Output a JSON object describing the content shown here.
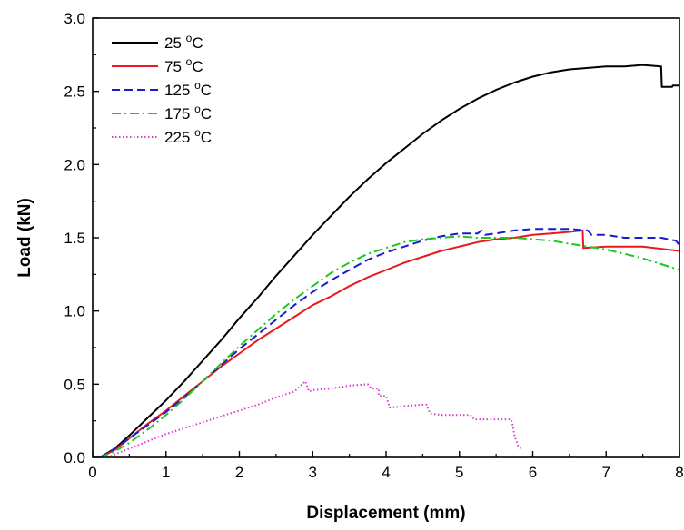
{
  "chart_data": {
    "type": "line",
    "title": "",
    "xlabel": "Displacement (mm)",
    "ylabel": "Load (kN)",
    "xlim": [
      0,
      8
    ],
    "ylim": [
      0.0,
      3.0
    ],
    "x_ticks": [
      0,
      1,
      2,
      3,
      4,
      5,
      6,
      7,
      8
    ],
    "x_tick_labels": [
      "0",
      "1",
      "2",
      "3",
      "4",
      "5",
      "6",
      "7",
      "8"
    ],
    "y_ticks": [
      0.0,
      0.5,
      1.0,
      1.5,
      2.0,
      2.5,
      3.0
    ],
    "y_tick_labels": [
      "0.0",
      "0.5",
      "1.0",
      "1.5",
      "2.0",
      "2.5",
      "3.0"
    ],
    "grid": false,
    "legend_position": "top-left",
    "series": [
      {
        "name": "25 °C",
        "label_value": "25 ",
        "label_sup": "o",
        "label_unit": "C",
        "color": "#000000",
        "dash": "solid",
        "points": [
          [
            0.1,
            0.0
          ],
          [
            0.3,
            0.06
          ],
          [
            0.5,
            0.15
          ],
          [
            0.75,
            0.27
          ],
          [
            1.0,
            0.39
          ],
          [
            1.25,
            0.52
          ],
          [
            1.5,
            0.66
          ],
          [
            1.75,
            0.8
          ],
          [
            2.0,
            0.95
          ],
          [
            2.25,
            1.09
          ],
          [
            2.5,
            1.24
          ],
          [
            2.75,
            1.38
          ],
          [
            3.0,
            1.52
          ],
          [
            3.25,
            1.65
          ],
          [
            3.5,
            1.78
          ],
          [
            3.75,
            1.9
          ],
          [
            4.0,
            2.01
          ],
          [
            4.25,
            2.11
          ],
          [
            4.5,
            2.21
          ],
          [
            4.75,
            2.3
          ],
          [
            5.0,
            2.38
          ],
          [
            5.25,
            2.45
          ],
          [
            5.5,
            2.51
          ],
          [
            5.75,
            2.56
          ],
          [
            6.0,
            2.6
          ],
          [
            6.25,
            2.63
          ],
          [
            6.5,
            2.65
          ],
          [
            6.75,
            2.66
          ],
          [
            7.0,
            2.67
          ],
          [
            7.25,
            2.67
          ],
          [
            7.5,
            2.68
          ],
          [
            7.75,
            2.67
          ],
          [
            7.76,
            2.53
          ],
          [
            7.9,
            2.53
          ],
          [
            7.91,
            2.54
          ],
          [
            8.0,
            2.54
          ]
        ]
      },
      {
        "name": "75 °C",
        "label_value": "75 ",
        "label_sup": "o",
        "label_unit": "C",
        "color": "#e8191d",
        "dash": "solid",
        "points": [
          [
            0.1,
            0.0
          ],
          [
            0.3,
            0.05
          ],
          [
            0.5,
            0.13
          ],
          [
            0.75,
            0.23
          ],
          [
            1.0,
            0.32
          ],
          [
            1.25,
            0.42
          ],
          [
            1.5,
            0.52
          ],
          [
            1.75,
            0.62
          ],
          [
            2.0,
            0.71
          ],
          [
            2.25,
            0.8
          ],
          [
            2.5,
            0.88
          ],
          [
            2.75,
            0.96
          ],
          [
            3.0,
            1.04
          ],
          [
            3.25,
            1.1
          ],
          [
            3.5,
            1.17
          ],
          [
            3.75,
            1.23
          ],
          [
            4.0,
            1.28
          ],
          [
            4.25,
            1.33
          ],
          [
            4.5,
            1.37
          ],
          [
            4.75,
            1.41
          ],
          [
            5.0,
            1.44
          ],
          [
            5.25,
            1.47
          ],
          [
            5.5,
            1.49
          ],
          [
            5.75,
            1.5
          ],
          [
            6.0,
            1.52
          ],
          [
            6.25,
            1.53
          ],
          [
            6.5,
            1.54
          ],
          [
            6.68,
            1.55
          ],
          [
            6.69,
            1.43
          ],
          [
            7.0,
            1.44
          ],
          [
            7.5,
            1.44
          ],
          [
            8.0,
            1.41
          ]
        ]
      },
      {
        "name": "125 °C",
        "label_value": "125 ",
        "label_sup": "o",
        "label_unit": "C",
        "color": "#1a1ad0",
        "dash": "dashed",
        "points": [
          [
            0.1,
            0.0
          ],
          [
            0.3,
            0.06
          ],
          [
            0.5,
            0.13
          ],
          [
            0.75,
            0.22
          ],
          [
            1.0,
            0.31
          ],
          [
            1.25,
            0.41
          ],
          [
            1.5,
            0.52
          ],
          [
            1.75,
            0.63
          ],
          [
            2.0,
            0.74
          ],
          [
            2.25,
            0.84
          ],
          [
            2.5,
            0.94
          ],
          [
            2.75,
            1.04
          ],
          [
            3.0,
            1.13
          ],
          [
            3.25,
            1.21
          ],
          [
            3.5,
            1.28
          ],
          [
            3.75,
            1.35
          ],
          [
            4.0,
            1.4
          ],
          [
            4.25,
            1.44
          ],
          [
            4.5,
            1.48
          ],
          [
            4.75,
            1.51
          ],
          [
            5.0,
            1.53
          ],
          [
            5.25,
            1.53
          ],
          [
            5.3,
            1.55
          ],
          [
            5.35,
            1.52
          ],
          [
            5.5,
            1.53
          ],
          [
            5.75,
            1.55
          ],
          [
            6.0,
            1.56
          ],
          [
            6.25,
            1.56
          ],
          [
            6.5,
            1.56
          ],
          [
            6.75,
            1.55
          ],
          [
            6.8,
            1.52
          ],
          [
            7.0,
            1.52
          ],
          [
            7.25,
            1.5
          ],
          [
            7.5,
            1.5
          ],
          [
            7.75,
            1.5
          ],
          [
            7.95,
            1.48
          ],
          [
            8.0,
            1.45
          ]
        ]
      },
      {
        "name": "175 °C",
        "label_value": "175 ",
        "label_sup": "o",
        "label_unit": "C",
        "color": "#1ec81e",
        "dash": "dashdot",
        "points": [
          [
            0.1,
            0.0
          ],
          [
            0.3,
            0.04
          ],
          [
            0.5,
            0.1
          ],
          [
            0.75,
            0.19
          ],
          [
            1.0,
            0.29
          ],
          [
            1.25,
            0.4
          ],
          [
            1.5,
            0.52
          ],
          [
            1.75,
            0.64
          ],
          [
            2.0,
            0.76
          ],
          [
            2.25,
            0.87
          ],
          [
            2.5,
            0.98
          ],
          [
            2.75,
            1.08
          ],
          [
            3.0,
            1.17
          ],
          [
            3.25,
            1.26
          ],
          [
            3.5,
            1.33
          ],
          [
            3.75,
            1.39
          ],
          [
            4.0,
            1.43
          ],
          [
            4.25,
            1.47
          ],
          [
            4.5,
            1.49
          ],
          [
            4.75,
            1.5
          ],
          [
            5.0,
            1.51
          ],
          [
            5.25,
            1.5
          ],
          [
            5.5,
            1.5
          ],
          [
            5.75,
            1.5
          ],
          [
            6.0,
            1.49
          ],
          [
            6.25,
            1.48
          ],
          [
            6.5,
            1.46
          ],
          [
            6.75,
            1.44
          ],
          [
            7.0,
            1.42
          ],
          [
            7.25,
            1.39
          ],
          [
            7.5,
            1.36
          ],
          [
            7.75,
            1.32
          ],
          [
            8.0,
            1.28
          ]
        ]
      },
      {
        "name": "225 °C",
        "label_value": "225 ",
        "label_sup": "o",
        "label_unit": "C",
        "color": "#d63cd6",
        "dash": "dotted",
        "points": [
          [
            0.2,
            0.0
          ],
          [
            0.4,
            0.04
          ],
          [
            0.6,
            0.08
          ],
          [
            0.8,
            0.12
          ],
          [
            1.0,
            0.16
          ],
          [
            1.25,
            0.2
          ],
          [
            1.5,
            0.24
          ],
          [
            1.75,
            0.28
          ],
          [
            2.0,
            0.32
          ],
          [
            2.25,
            0.36
          ],
          [
            2.5,
            0.41
          ],
          [
            2.75,
            0.45
          ],
          [
            2.9,
            0.52
          ],
          [
            2.95,
            0.45
          ],
          [
            3.0,
            0.46
          ],
          [
            3.25,
            0.47
          ],
          [
            3.5,
            0.49
          ],
          [
            3.75,
            0.5
          ],
          [
            3.8,
            0.47
          ],
          [
            3.9,
            0.47
          ],
          [
            3.9,
            0.42
          ],
          [
            4.0,
            0.42
          ],
          [
            4.05,
            0.34
          ],
          [
            4.25,
            0.35
          ],
          [
            4.5,
            0.36
          ],
          [
            4.55,
            0.36
          ],
          [
            4.6,
            0.3
          ],
          [
            4.75,
            0.29
          ],
          [
            5.0,
            0.29
          ],
          [
            5.15,
            0.29
          ],
          [
            5.2,
            0.26
          ],
          [
            5.5,
            0.26
          ],
          [
            5.7,
            0.26
          ],
          [
            5.72,
            0.24
          ],
          [
            5.75,
            0.15
          ],
          [
            5.8,
            0.08
          ],
          [
            5.85,
            0.05
          ]
        ]
      }
    ]
  }
}
